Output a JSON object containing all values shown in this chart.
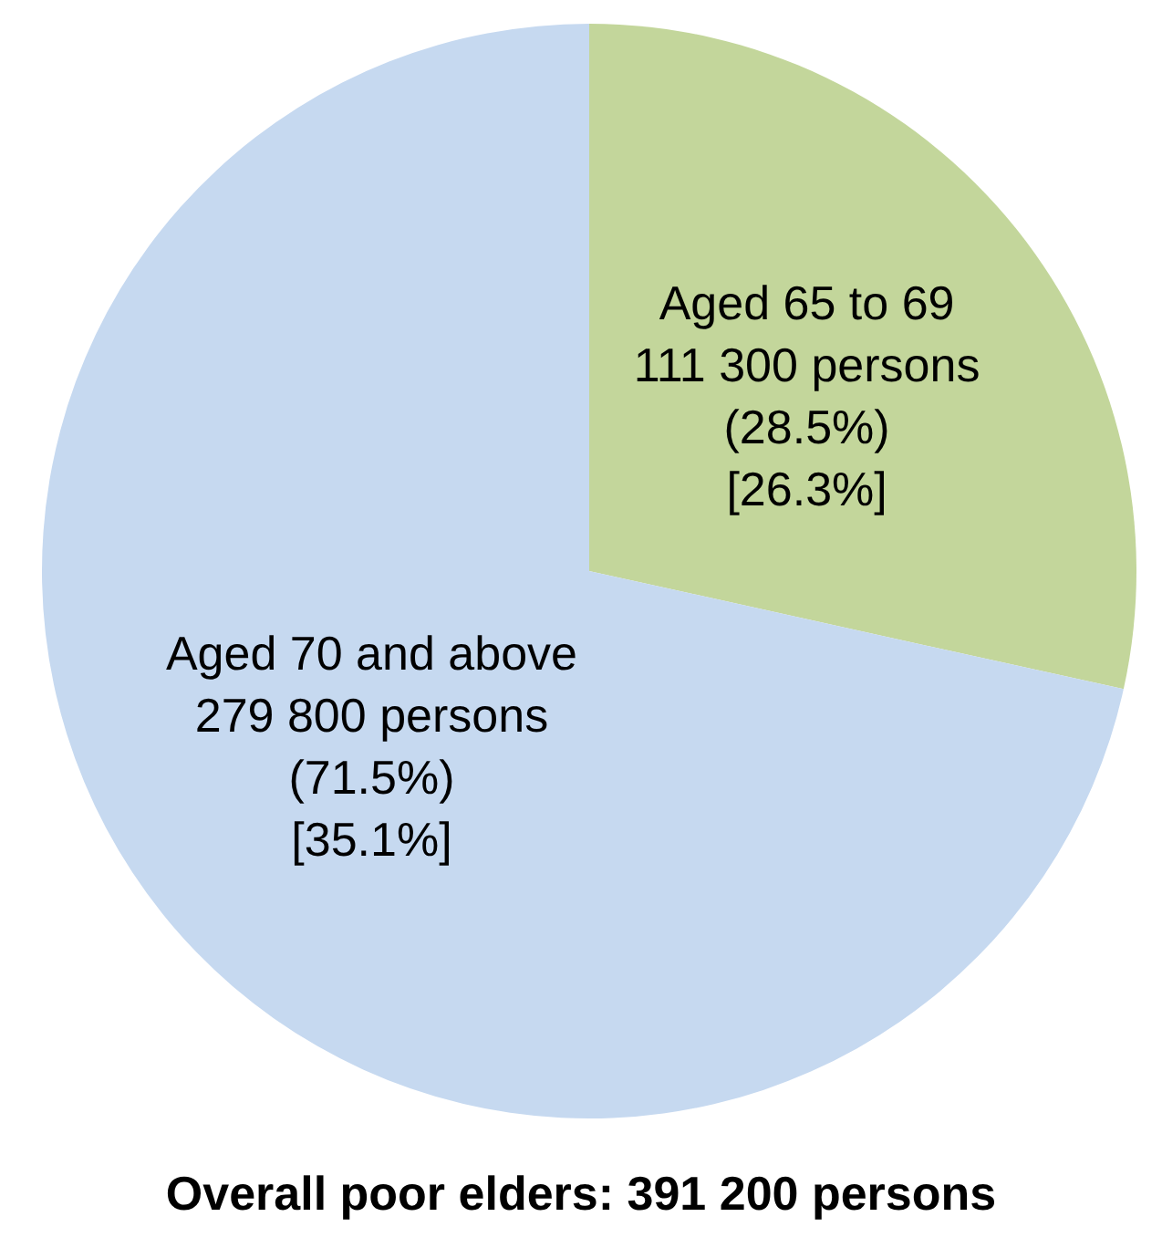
{
  "chart_data": {
    "type": "pie",
    "title": "Overall poor elders: 391 200 persons",
    "categories": [
      "Aged 65 to 69",
      "Aged 70 and above"
    ],
    "values": [
      111300,
      279800
    ],
    "colors": [
      "#c3d69b",
      "#c6d9f0"
    ],
    "value_labels": [
      "111 300 persons\n(28.5%)\n[26.3%]",
      "279 800 persons\n(71.5%)\n[35.1%]"
    ],
    "legend": false
  }
}
